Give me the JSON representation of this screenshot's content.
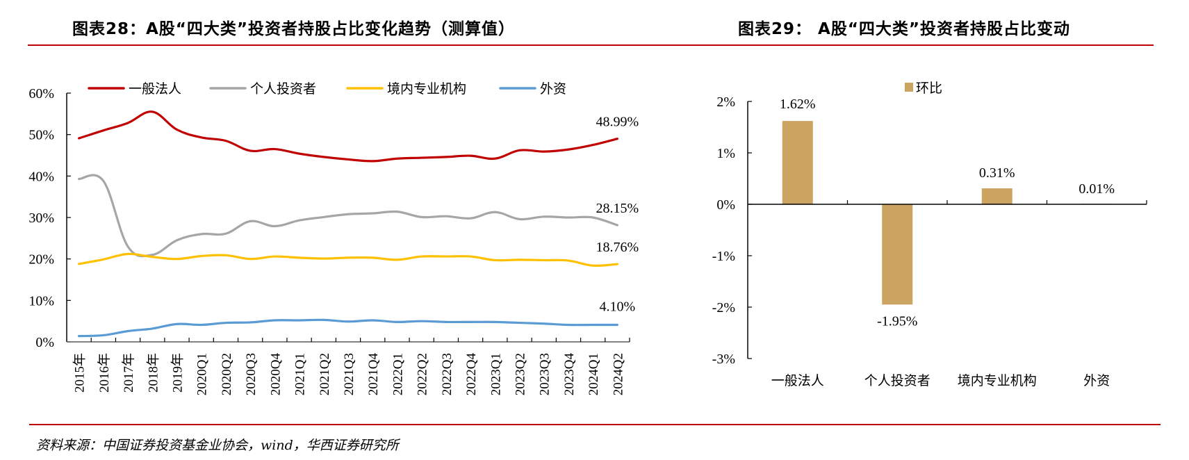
{
  "header": {
    "left_title": "图表28：A股“四大类”投资者持股占比变化趋势（测算值）",
    "right_title": "图表29： A股“四大类”投资者持股占比变动"
  },
  "footer": {
    "source": "资料来源：中国证券投资基金业协会，wind，华西证券研究所"
  },
  "colors": {
    "rule": "#c00000",
    "series_general_corp": "#c00000",
    "series_individual": "#a6a6a6",
    "series_domestic_inst": "#ffc000",
    "series_foreign": "#5b9bd5",
    "bar": "#cca462"
  },
  "chart_data": [
    {
      "type": "line",
      "title": "图表28：A股“四大类”投资者持股占比变化趋势（测算值）",
      "xlabel": "",
      "ylabel": "",
      "ylim": [
        0,
        60
      ],
      "yticks": [
        "0%",
        "10%",
        "20%",
        "30%",
        "40%",
        "50%",
        "60%"
      ],
      "ytick_values": [
        0,
        10,
        20,
        30,
        40,
        50,
        60
      ],
      "grid": false,
      "legend_position": "top",
      "categories": [
        "2015年",
        "2016年",
        "2017年",
        "2018年",
        "2019年",
        "2020Q1",
        "2020Q2",
        "2020Q3",
        "2020Q4",
        "2021Q1",
        "2021Q2",
        "2021Q3",
        "2021Q4",
        "2022Q1",
        "2022Q2",
        "2022Q3",
        "2022Q4",
        "2023Q1",
        "2023Q2",
        "2023Q3",
        "2023Q4",
        "2024Q1",
        "2024Q2"
      ],
      "series": [
        {
          "name": "一般法人",
          "color": "#c00000",
          "values": [
            49.1,
            51.0,
            52.8,
            55.5,
            51.2,
            49.3,
            48.5,
            46.1,
            46.5,
            45.4,
            44.6,
            44.0,
            43.6,
            44.2,
            44.4,
            44.6,
            44.9,
            44.2,
            46.2,
            45.9,
            46.4,
            47.5,
            48.99
          ],
          "end_label": "48.99%"
        },
        {
          "name": "个人投资者",
          "color": "#a6a6a6",
          "values": [
            39.3,
            38.8,
            23.0,
            21.0,
            24.5,
            26.0,
            26.1,
            29.1,
            27.9,
            29.3,
            30.1,
            30.8,
            31.0,
            31.4,
            30.1,
            30.3,
            29.8,
            31.3,
            29.6,
            30.2,
            30.0,
            30.0,
            28.15
          ],
          "end_label": "28.15%"
        },
        {
          "name": "境内专业机构",
          "color": "#ffc000",
          "values": [
            18.8,
            19.9,
            21.2,
            20.5,
            20.0,
            20.7,
            20.9,
            20.0,
            20.6,
            20.3,
            20.1,
            20.3,
            20.3,
            19.8,
            20.6,
            20.6,
            20.6,
            19.7,
            19.8,
            19.7,
            19.6,
            18.4,
            18.76
          ],
          "end_label": "18.76%"
        },
        {
          "name": "外资",
          "color": "#5b9bd5",
          "values": [
            1.4,
            1.6,
            2.6,
            3.2,
            4.3,
            4.1,
            4.6,
            4.7,
            5.2,
            5.2,
            5.3,
            4.9,
            5.2,
            4.8,
            5.0,
            4.8,
            4.8,
            4.8,
            4.6,
            4.4,
            4.1,
            4.1,
            4.1
          ],
          "end_label": "4.10%"
        }
      ]
    },
    {
      "type": "bar",
      "title": "图表29： A股“四大类”投资者持股占比变动",
      "xlabel": "",
      "ylabel": "",
      "ylim": [
        -3,
        2
      ],
      "yticks": [
        "2%",
        "1%",
        "0%",
        "-1%",
        "-2%",
        "-3%"
      ],
      "ytick_values": [
        2,
        1,
        0,
        -1,
        -2,
        -3
      ],
      "grid": false,
      "legend_position": "top",
      "legend": [
        "环比"
      ],
      "categories": [
        "一般法人",
        "个人投资者",
        "境内专业机构",
        "外资"
      ],
      "series": [
        {
          "name": "环比",
          "color": "#cca462",
          "values": [
            1.62,
            -1.95,
            0.31,
            0.01
          ],
          "labels": [
            "1.62%",
            "-1.95%",
            "0.31%",
            "0.01%"
          ]
        }
      ]
    }
  ]
}
